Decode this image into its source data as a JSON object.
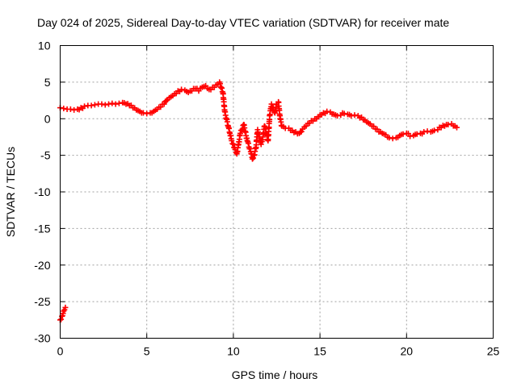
{
  "chart_data": {
    "type": "scatter",
    "title": "Day 024 of 2025, Sidereal Day-to-day VTEC variation (SDTVAR) for receiver mate",
    "xlabel": "GPS time / hours",
    "ylabel": "SDTVAR / TECUs",
    "xlim": [
      0,
      25
    ],
    "ylim": [
      -30,
      10
    ],
    "xticks": [
      "0",
      "5",
      "10",
      "15",
      "20",
      "25"
    ],
    "yticks": [
      "10",
      "5",
      "0",
      "-5",
      "-10",
      "-15",
      "-20",
      "-25",
      "-30"
    ],
    "grid": true,
    "marker": "+",
    "color": "#ff0000",
    "series": [
      {
        "name": "SDTVAR",
        "x": [
          0.0,
          0.1,
          0.2,
          0.3,
          0.0,
          0.2,
          0.4,
          0.6,
          0.8,
          1.0,
          1.2,
          1.4,
          1.6,
          1.8,
          2.0,
          2.2,
          2.4,
          2.6,
          2.8,
          3.0,
          3.2,
          3.4,
          3.6,
          3.8,
          4.0,
          4.2,
          4.4,
          4.6,
          4.8,
          5.0,
          5.2,
          5.4,
          5.6,
          5.8,
          6.0,
          6.2,
          6.4,
          6.6,
          6.8,
          7.0,
          7.2,
          7.4,
          7.6,
          7.8,
          8.0,
          8.2,
          8.4,
          8.6,
          8.8,
          9.0,
          9.2,
          9.4,
          9.5,
          9.6,
          9.7,
          9.8,
          9.9,
          10.0,
          10.1,
          10.2,
          10.3,
          10.4,
          10.6,
          10.8,
          11.0,
          11.1,
          11.2,
          11.3,
          11.4,
          11.5,
          11.6,
          11.7,
          11.8,
          11.9,
          12.0,
          12.1,
          12.2,
          12.3,
          12.4,
          12.5,
          12.6,
          12.7,
          12.8,
          13.0,
          13.2,
          13.4,
          13.6,
          13.8,
          14.0,
          14.2,
          14.4,
          14.6,
          14.8,
          15.0,
          15.2,
          15.4,
          15.6,
          15.8,
          16.0,
          16.2,
          16.4,
          16.6,
          16.8,
          17.0,
          17.2,
          17.4,
          17.6,
          17.8,
          18.0,
          18.2,
          18.4,
          18.6,
          18.8,
          19.0,
          19.2,
          19.4,
          19.6,
          19.8,
          20.0,
          20.2,
          20.4,
          20.6,
          20.8,
          21.0,
          21.2,
          21.4,
          21.6,
          21.8,
          22.0,
          22.2,
          22.4,
          22.6,
          22.8,
          22.9
        ],
        "y": [
          -27.5,
          -27.0,
          -26.3,
          -25.8,
          1.5,
          1.4,
          1.3,
          1.3,
          1.2,
          1.3,
          1.5,
          1.7,
          1.8,
          1.8,
          1.9,
          2.0,
          2.0,
          1.9,
          2.0,
          2.1,
          2.0,
          2.1,
          2.2,
          2.0,
          1.8,
          1.5,
          1.2,
          1.0,
          0.8,
          0.7,
          0.8,
          1.0,
          1.3,
          1.6,
          2.0,
          2.6,
          3.0,
          3.4,
          3.8,
          4.0,
          3.9,
          3.6,
          3.8,
          4.1,
          3.8,
          4.3,
          4.5,
          4.0,
          4.3,
          4.6,
          5.0,
          3.5,
          1.0,
          0.0,
          -1.0,
          -2.0,
          -3.0,
          -3.5,
          -4.2,
          -4.8,
          -3.5,
          -2.0,
          -0.8,
          -3.0,
          -4.5,
          -5.5,
          -5.0,
          -4.0,
          -1.5,
          -2.5,
          -3.5,
          -2.5,
          -1.0,
          -2.0,
          -3.0,
          0.5,
          2.0,
          1.5,
          0.8,
          2.0,
          2.3,
          0.0,
          -1.0,
          -1.3,
          -1.3,
          -1.6,
          -1.8,
          -2.0,
          -1.4,
          -1.0,
          -0.6,
          -0.3,
          0.0,
          0.5,
          0.8,
          1.0,
          0.9,
          0.6,
          0.4,
          0.5,
          0.7,
          0.6,
          0.4,
          0.5,
          0.4,
          0.2,
          -0.2,
          -0.6,
          -1.0,
          -1.4,
          -1.8,
          -2.0,
          -2.2,
          -2.6,
          -2.7,
          -2.6,
          -2.3,
          -2.1,
          -2.0,
          -2.4,
          -2.3,
          -2.1,
          -2.0,
          -1.8,
          -1.7,
          -1.8,
          -1.6,
          -1.5,
          -1.2,
          -1.0,
          -0.8,
          -0.7,
          -1.0,
          -1.2
        ]
      }
    ]
  }
}
